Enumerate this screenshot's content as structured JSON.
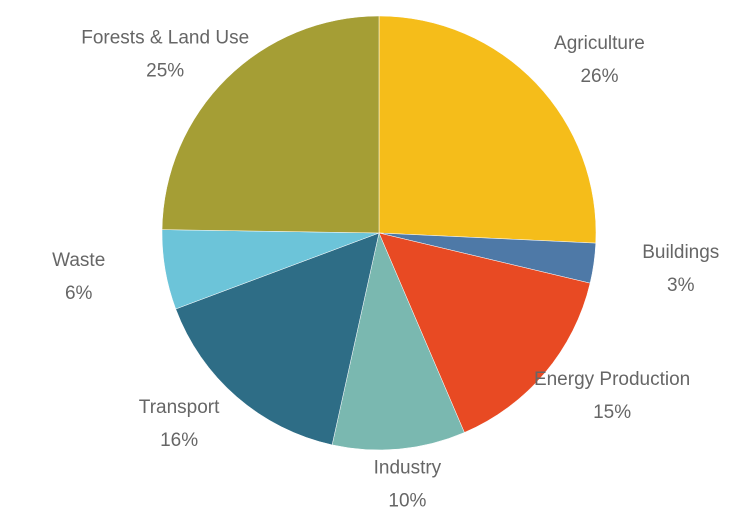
{
  "chart_data": {
    "type": "pie",
    "categories": [
      "Agriculture",
      "Buildings",
      "Energy Production",
      "Industry",
      "Transport",
      "Waste",
      "Forests & Land Use"
    ],
    "values": [
      26,
      3,
      15,
      10,
      16,
      6,
      25
    ],
    "value_labels": [
      "26%",
      "3%",
      "15%",
      "10%",
      "16%",
      "6%",
      "25%"
    ],
    "colors": [
      "#f5bd1a",
      "#4e79a7",
      "#e84a23",
      "#7ab8b0",
      "#2e6d86",
      "#6cc4d9",
      "#a59e35"
    ]
  }
}
